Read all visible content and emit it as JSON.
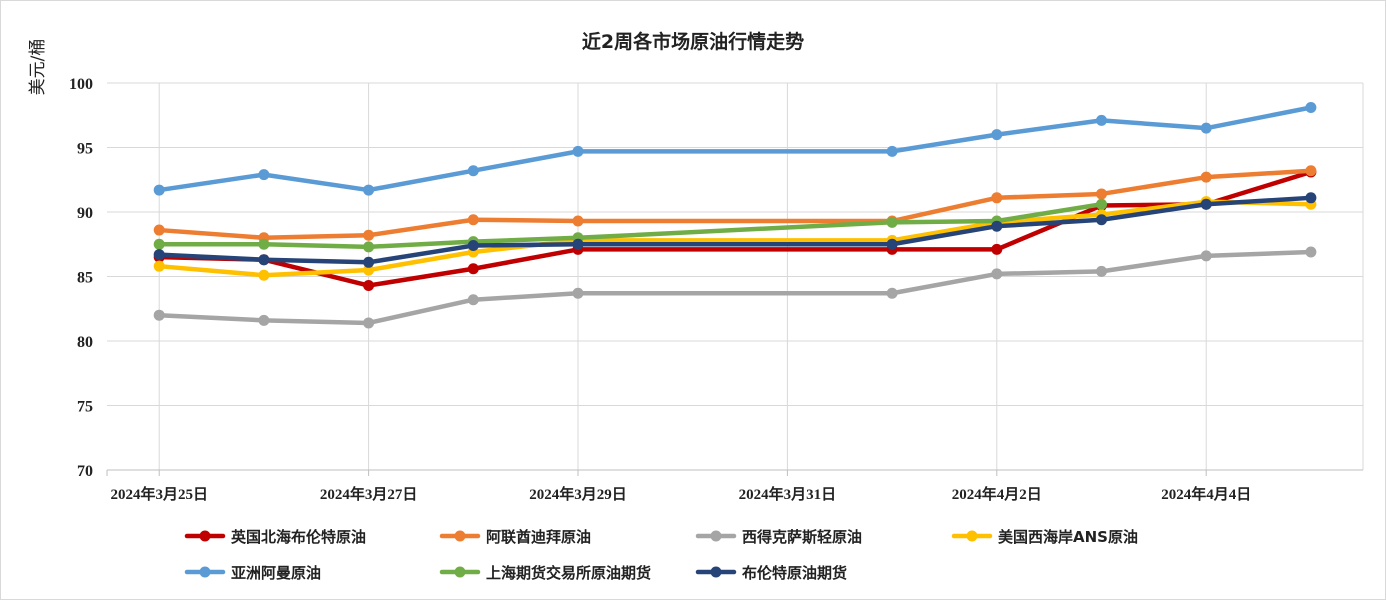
{
  "chart_data": {
    "type": "line",
    "title": "近2周各市场原油行情走势",
    "ylabel": "美元/桶",
    "xlabel": "",
    "ylim": [
      70,
      100
    ],
    "yticks": [
      70,
      75,
      80,
      85,
      90,
      95,
      100
    ],
    "x": [
      "2024-03-25",
      "2024-03-26",
      "2024-03-27",
      "2024-03-28",
      "2024-03-29",
      "2024-04-01",
      "2024-04-02",
      "2024-04-03",
      "2024-04-04",
      "2024-04-05"
    ],
    "x_tick_labels": [
      {
        "date": "2024-03-25",
        "label": "2024年3月25日"
      },
      {
        "date": "2024-03-27",
        "label": "2024年3月27日"
      },
      {
        "date": "2024-03-29",
        "label": "2024年3月29日"
      },
      {
        "date": "2024-03-31",
        "label": "2024年3月31日"
      },
      {
        "date": "2024-04-02",
        "label": "2024年4月2日"
      },
      {
        "date": "2024-04-04",
        "label": "2024年4月4日"
      }
    ],
    "grid": true,
    "legend_placement": "bottom",
    "series": [
      {
        "name": "英国北海布伦特原油",
        "color": "#c00000",
        "values": [
          86.5,
          86.3,
          84.3,
          85.6,
          87.1,
          87.1,
          87.1,
          90.5,
          90.6,
          93.1
        ]
      },
      {
        "name": "阿联酋迪拜原油",
        "color": "#ed7d31",
        "values": [
          88.6,
          88.0,
          88.2,
          89.4,
          89.3,
          89.3,
          91.1,
          91.4,
          92.7,
          93.2
        ]
      },
      {
        "name": "西得克萨斯轻原油",
        "color": "#a5a5a5",
        "values": [
          82.0,
          81.6,
          81.4,
          83.2,
          83.7,
          83.7,
          85.2,
          85.4,
          86.6,
          86.9
        ]
      },
      {
        "name": "美国西海岸ANS原油",
        "color": "#ffc000",
        "values": [
          85.8,
          85.1,
          85.5,
          86.9,
          87.8,
          87.8,
          89.2,
          89.8,
          90.8,
          90.6
        ]
      },
      {
        "name": "亚洲阿曼原油",
        "color": "#5b9bd5",
        "values": [
          91.7,
          92.9,
          91.7,
          93.2,
          94.7,
          94.7,
          96.0,
          97.1,
          96.5,
          98.1
        ]
      },
      {
        "name": "上海期货交易所原油期货",
        "color": "#70ad47",
        "values": [
          87.5,
          87.5,
          87.3,
          87.7,
          88.0,
          89.2,
          89.3,
          90.6,
          null,
          null
        ]
      },
      {
        "name": "布伦特原油期货",
        "color": "#264478",
        "values": [
          86.7,
          86.3,
          86.1,
          87.4,
          87.5,
          87.5,
          88.9,
          89.4,
          90.6,
          91.1
        ]
      }
    ]
  }
}
